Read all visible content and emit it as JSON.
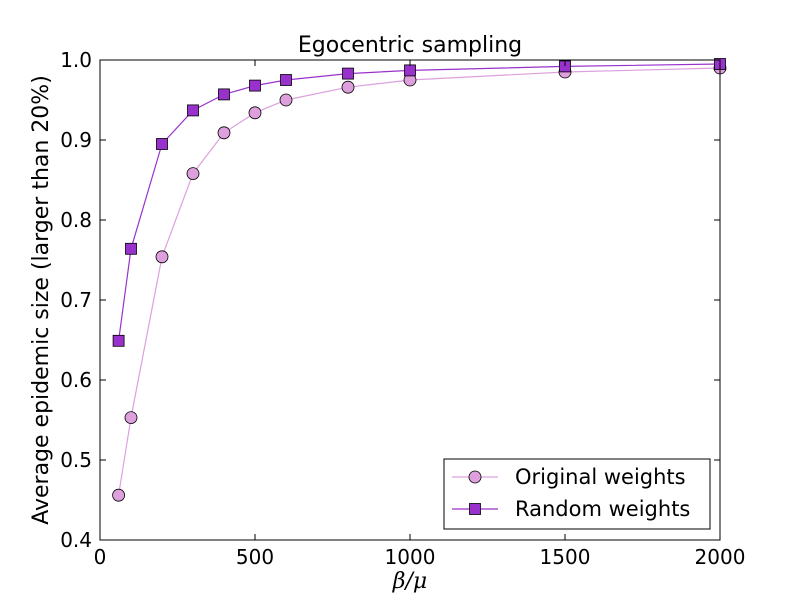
{
  "chart_data": {
    "type": "line",
    "title": "Egocentric sampling",
    "xlabel": "β/μ",
    "ylabel": "Average epidemic size (larger than 20%)",
    "xlim": [
      0,
      2000
    ],
    "ylim": [
      0.4,
      1.0
    ],
    "xticks": [
      0,
      500,
      1000,
      1500,
      2000
    ],
    "yticks": [
      0.4,
      0.5,
      0.6,
      0.7,
      0.8,
      0.9,
      1.0
    ],
    "xtick_labels": [
      "0",
      "500",
      "1000",
      "1500",
      "2000"
    ],
    "ytick_labels": [
      "0.4",
      "0.5",
      "0.6",
      "0.7",
      "0.8",
      "0.9",
      "1.0"
    ],
    "grid": false,
    "legend_position": "bottom-right",
    "series": [
      {
        "name": "Original weights",
        "marker": "circle",
        "color": "#DDA0DD",
        "line_color": "#DDA0DD",
        "x": [
          60,
          100,
          200,
          300,
          400,
          500,
          600,
          800,
          1000,
          1500,
          2000
        ],
        "y": [
          0.456,
          0.553,
          0.754,
          0.858,
          0.909,
          0.934,
          0.95,
          0.966,
          0.975,
          0.985,
          0.99
        ]
      },
      {
        "name": "Random weights",
        "marker": "square",
        "color": "#9932CC",
        "line_color": "#9932CC",
        "x": [
          60,
          100,
          200,
          300,
          400,
          500,
          600,
          800,
          1000,
          1500,
          2000
        ],
        "y": [
          0.649,
          0.764,
          0.895,
          0.937,
          0.957,
          0.968,
          0.975,
          0.983,
          0.987,
          0.992,
          0.995
        ]
      }
    ]
  }
}
